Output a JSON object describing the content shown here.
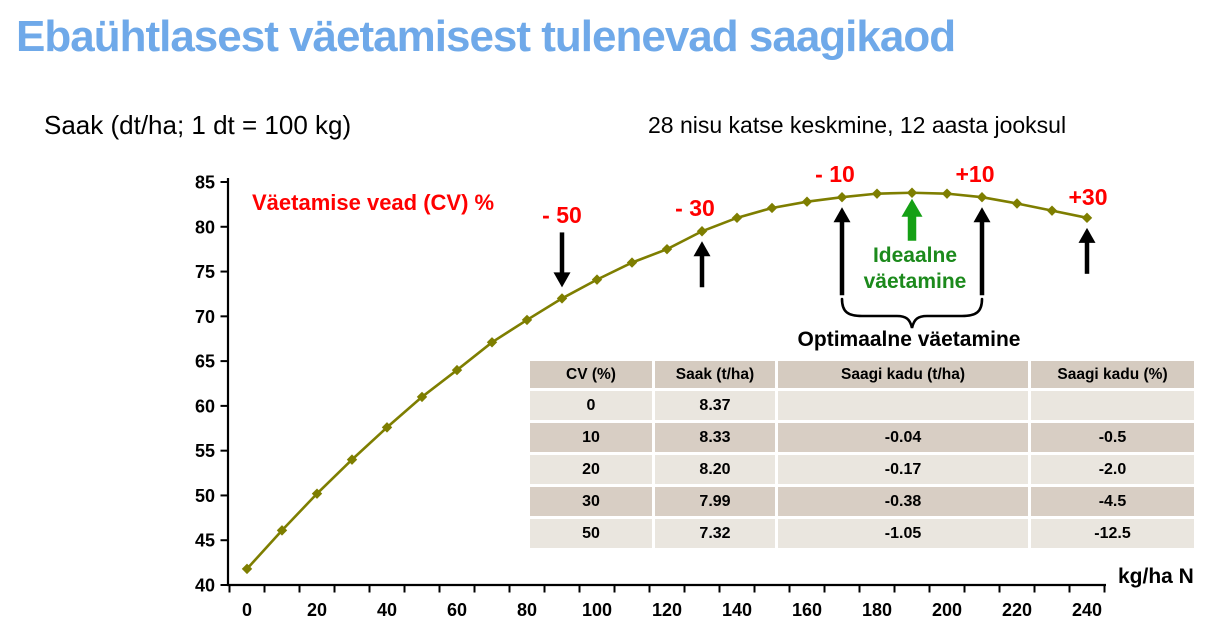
{
  "title": "Ebaühtlasest väetamisest tulenevad saagikaod",
  "subtitle_left": "Saak (dt/ha; 1 dt = 100 kg)",
  "subtitle_right": "28 nisu katse keskmine, 12 aasta jooksul",
  "x_axis_label": "kg/ha N",
  "chart_data": {
    "type": "line",
    "x": [
      0,
      10,
      20,
      30,
      40,
      50,
      60,
      70,
      80,
      90,
      100,
      110,
      120,
      130,
      140,
      150,
      160,
      170,
      180,
      190,
      200,
      210,
      220,
      230,
      240
    ],
    "series": [
      {
        "name": "Saak (dt/ha)",
        "values": [
          41.8,
          46.1,
          50.2,
          54.0,
          57.6,
          61.0,
          64.0,
          67.1,
          69.6,
          72.0,
          74.1,
          76.0,
          77.5,
          79.5,
          81.0,
          82.1,
          82.8,
          83.3,
          83.7,
          83.8,
          83.7,
          83.3,
          82.6,
          81.8,
          81.0
        ]
      }
    ],
    "title": "",
    "xlabel": "kg/ha N",
    "ylabel": "Saak (dt/ha; 1 dt = 100 kg)",
    "xlim": [
      0,
      240
    ],
    "ylim": [
      40,
      85
    ],
    "x_tick_step": 20,
    "y_tick_step": 5,
    "grid": "off",
    "marker": "diamond",
    "line_color": "#7E7E00"
  },
  "annotations": {
    "cv_label": "Väetamise vead (CV) %",
    "error_markers": [
      {
        "label": "- 50",
        "x": 90,
        "direction": "down"
      },
      {
        "label": "- 30",
        "x": 130,
        "direction": "up"
      },
      {
        "label": "- 10",
        "x": 170,
        "direction": "up"
      },
      {
        "label": "+10",
        "x": 210,
        "direction": "up"
      },
      {
        "label": "+30",
        "x": 240,
        "direction": "up"
      }
    ],
    "ideal_label": "Ideaalne väetamine",
    "ideal_x": 190,
    "optimal_label": "Optimaalne väetamine",
    "optimal_range": [
      170,
      210
    ]
  },
  "table": {
    "headers": [
      "CV (%)",
      "Saak (t/ha)",
      "Saagi kadu (t/ha)",
      "Saagi kadu (%)"
    ],
    "rows": [
      [
        "0",
        "8.37",
        "",
        ""
      ],
      [
        "10",
        "8.33",
        "-0.04",
        "-0.5"
      ],
      [
        "20",
        "8.20",
        "-0.17",
        "-2.0"
      ],
      [
        "30",
        "7.99",
        "-0.38",
        "-4.5"
      ],
      [
        "50",
        "7.32",
        "-1.05",
        "-12.5"
      ]
    ]
  },
  "colors": {
    "title_blue": "#6FA9E9",
    "curve_olive": "#7E7E00",
    "error_red": "#FF0000",
    "ideal_arrow_green": "#15A015",
    "ideal_text_green": "#1C8A1C",
    "table_header_bg": "#D5CBC0",
    "table_row_light": "#EAE6DF",
    "table_row_dark": "#D8CEC4"
  }
}
